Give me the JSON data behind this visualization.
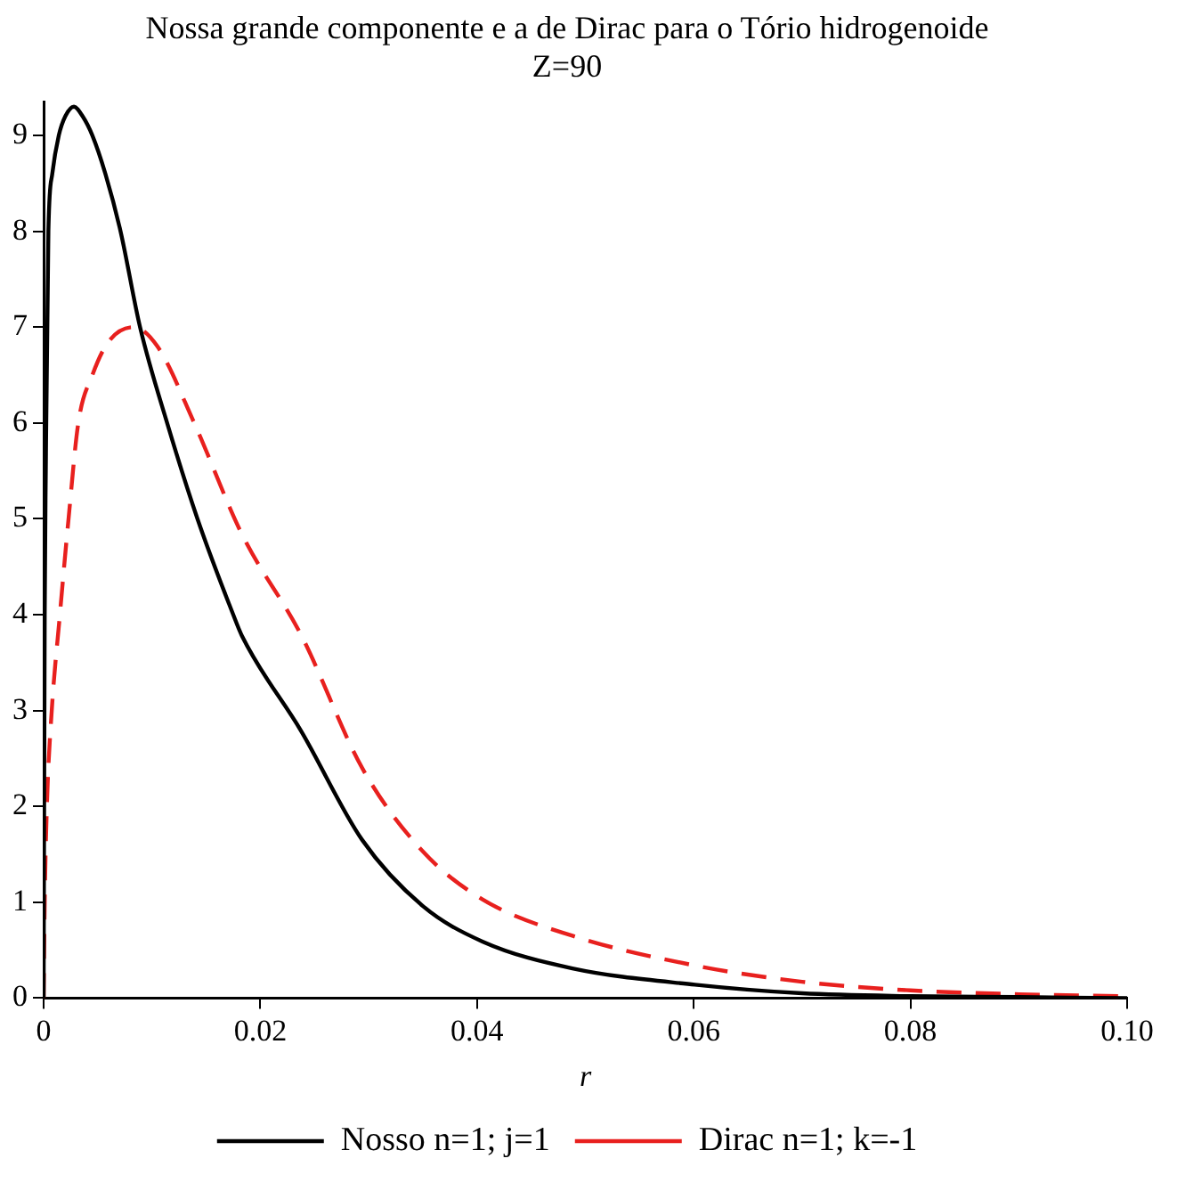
{
  "chart_data": {
    "type": "line",
    "title": "Nossa grande componente e a de Dirac para o Tório hidrogenoide",
    "subtitle": "Z=90",
    "xlabel": "r",
    "xlim": [
      0,
      0.1
    ],
    "xticks": [
      0,
      0.02,
      0.04,
      0.06,
      0.08,
      {
        "value": 0.1,
        "label": "0.10"
      }
    ],
    "ylim": [
      0,
      9.35
    ],
    "yticks": [
      0,
      1,
      2,
      3,
      4,
      5,
      6,
      7,
      8,
      9
    ],
    "grid": false,
    "legend": "bottom",
    "marker": "none",
    "series": [
      {
        "name": "Nosso n=1; j=1",
        "color": "#000000",
        "line_style": "solid",
        "x": [
          0,
          0.0001,
          0.0002,
          0.00044,
          0.0008,
          0.0014,
          0.002,
          0.0028,
          0.0036,
          0.0045,
          0.0057,
          0.0071,
          0.0089,
          0.0114,
          0.0142,
          0.0175,
          0.0183,
          0.0238,
          0.0294,
          0.035,
          0.0405,
          0.0488,
          0.0601,
          0.07,
          0.08,
          0.09,
          0.1
        ],
        "values": [
          0,
          4,
          5.5,
          8,
          8.6,
          9,
          9.2,
          9.3,
          9.2,
          9,
          8.6,
          8,
          7,
          6,
          5,
          4,
          3.78,
          2.78,
          1.65,
          0.96,
          0.59,
          0.31,
          0.14,
          0.05,
          0.02,
          0.01,
          0
        ]
      },
      {
        "name": "Dirac n=1; k=-1",
        "color": "#e8201e",
        "line_style": "dashed",
        "x": [
          0,
          0.0001,
          0.0003,
          0.00075,
          0.0015,
          0.0023,
          0.0032,
          0.0045,
          0.006,
          0.0083,
          0.0105,
          0.0139,
          0.0183,
          0.0238,
          0.0294,
          0.035,
          0.0405,
          0.0488,
          0.0601,
          0.07,
          0.08,
          0.09,
          0.1
        ],
        "values": [
          0,
          1,
          2,
          3,
          4,
          5,
          6,
          6.5,
          6.85,
          7,
          6.8,
          6,
          4.84,
          3.78,
          2.4,
          1.53,
          1.03,
          0.65,
          0.34,
          0.17,
          0.08,
          0.04,
          0.02
        ]
      }
    ]
  }
}
